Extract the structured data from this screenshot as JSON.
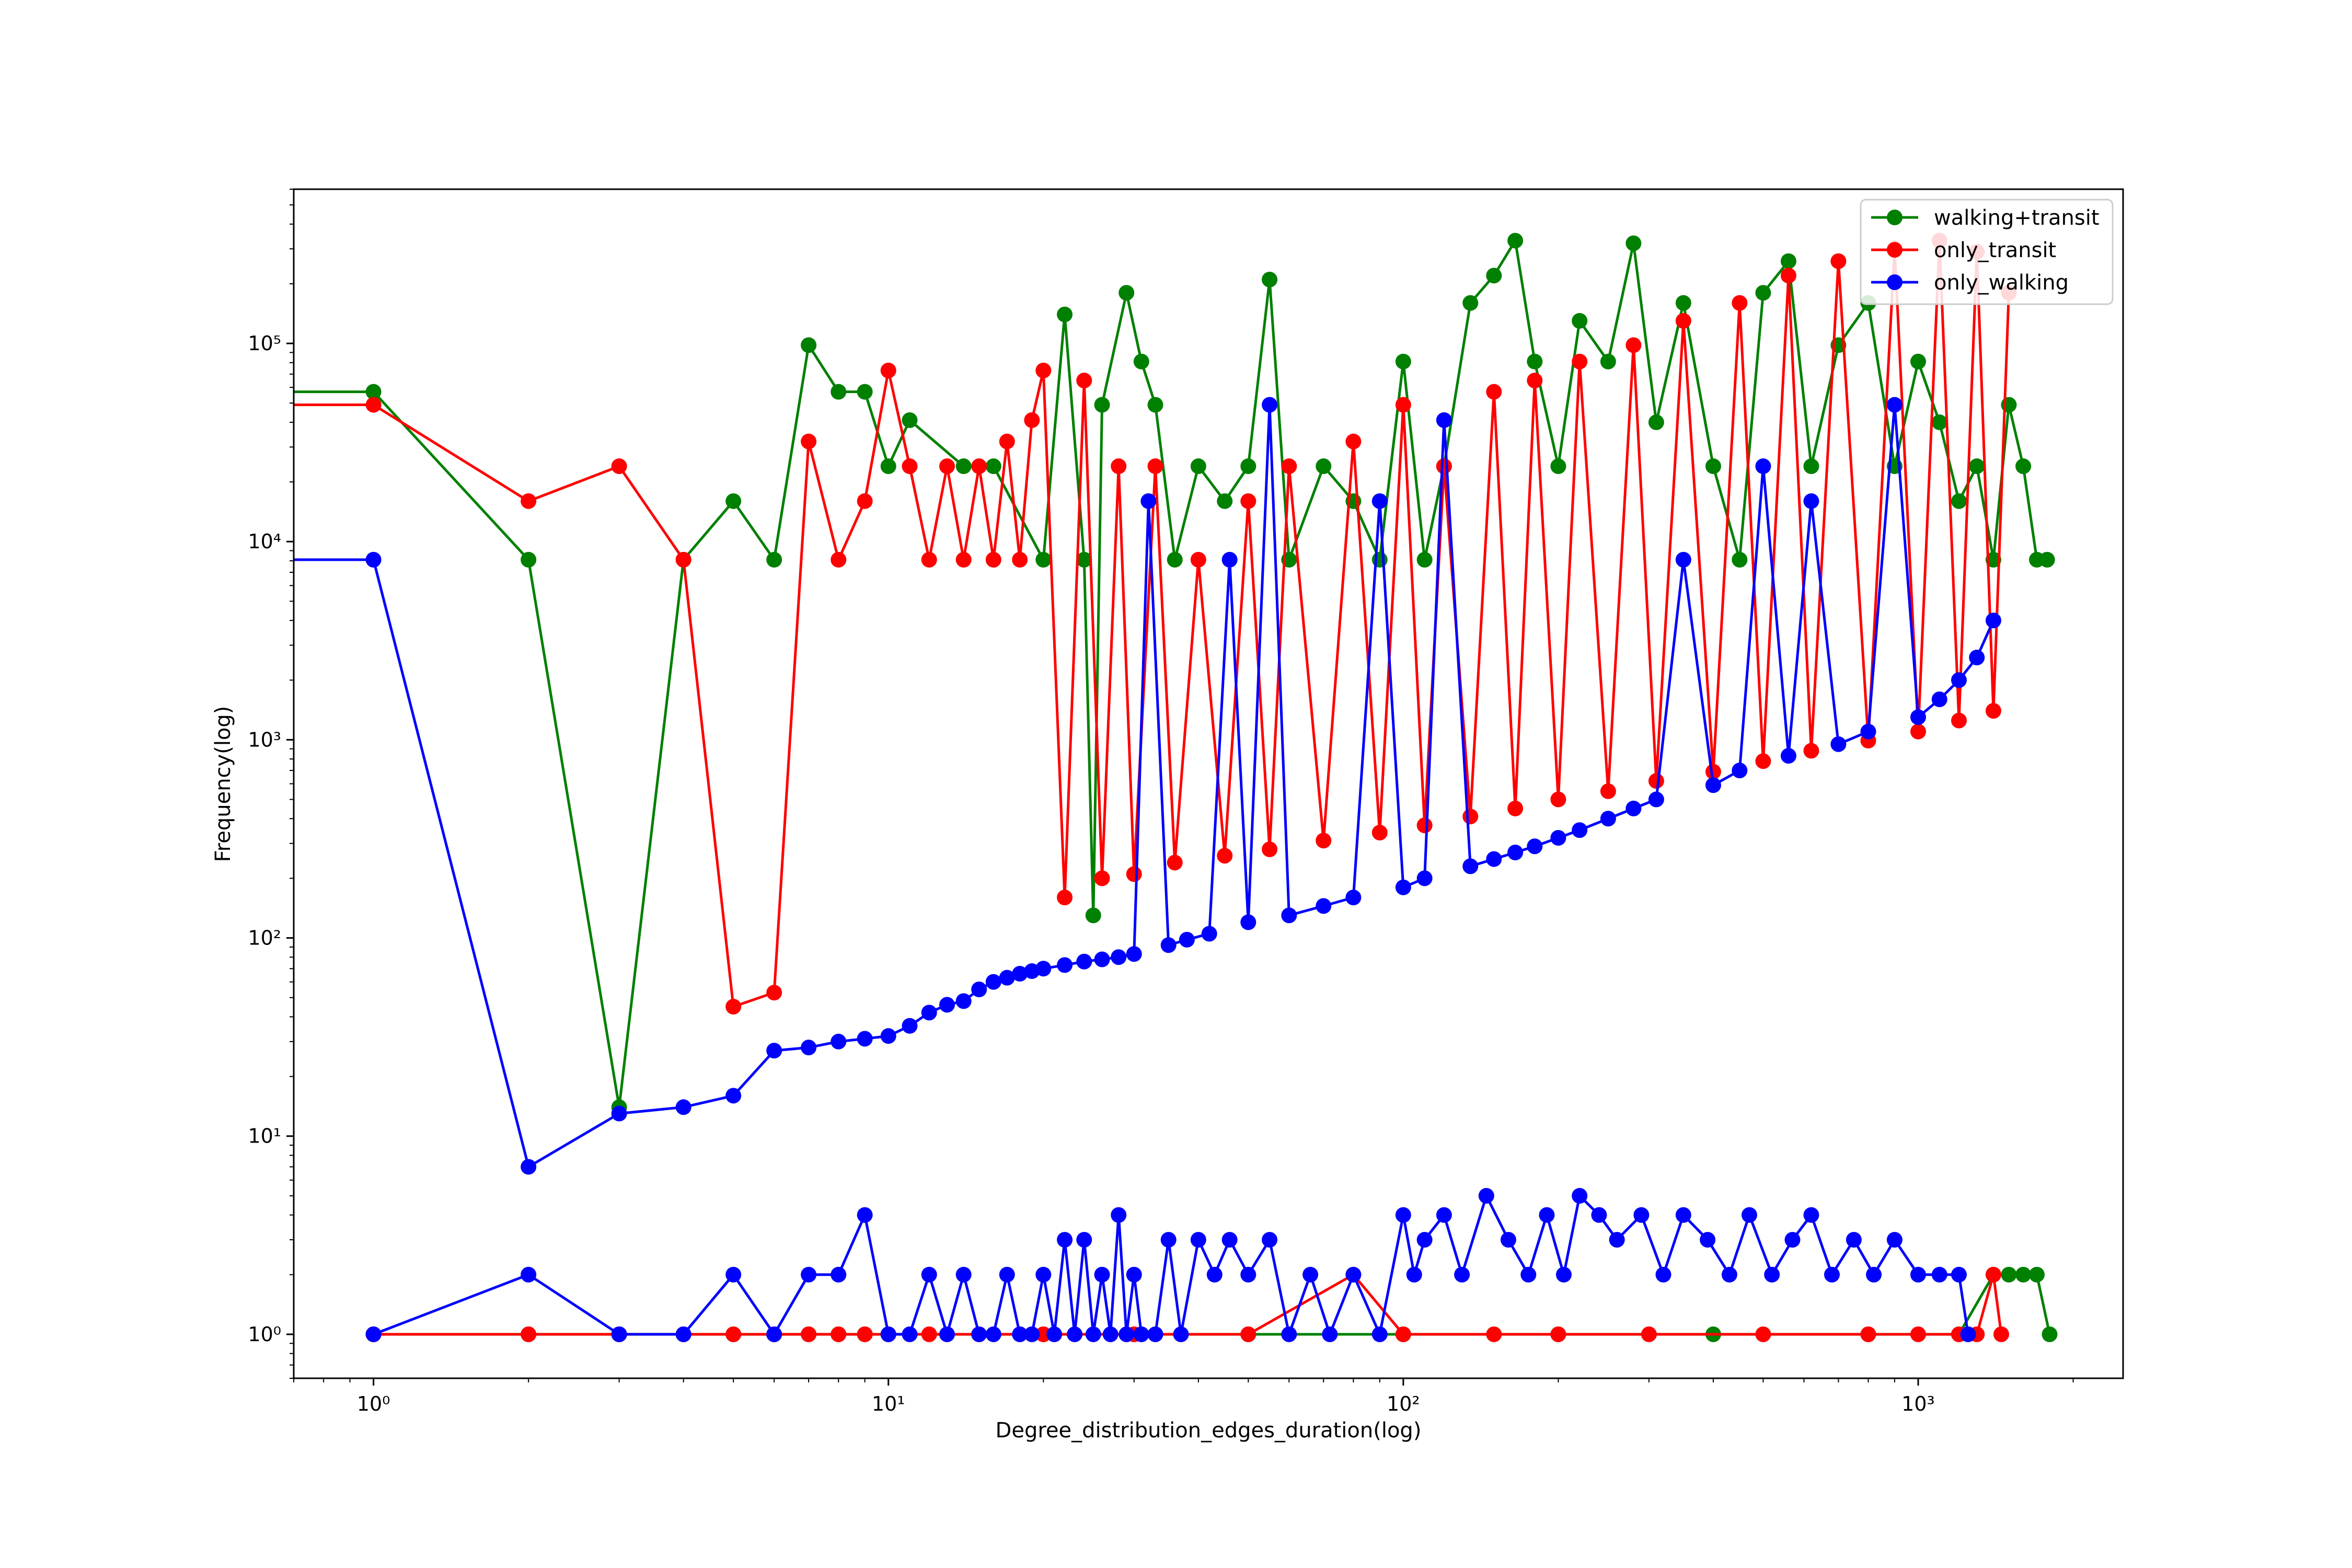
{
  "chart_data": {
    "type": "line",
    "title": "",
    "xlabel": "Degree_distribution_edges_duration(log)",
    "ylabel": "Frequency(log)",
    "xscale": "log",
    "yscale": "log",
    "xlim": [
      0.7,
      2500
    ],
    "ylim": [
      0.6,
      600000
    ],
    "grid": false,
    "legend_position": "top-right",
    "x_ticks": [
      {
        "value": 1,
        "label": "10⁰"
      },
      {
        "value": 10,
        "label": "10¹"
      },
      {
        "value": 100,
        "label": "10²"
      },
      {
        "value": 1000,
        "label": "10³"
      }
    ],
    "y_ticks": [
      {
        "value": 1,
        "label": "10⁰"
      },
      {
        "value": 10,
        "label": "10¹"
      },
      {
        "value": 100,
        "label": "10²"
      },
      {
        "value": 1000,
        "label": "10³"
      },
      {
        "value": 10000,
        "label": "10⁴"
      },
      {
        "value": 100000,
        "label": "10⁵"
      }
    ],
    "series": [
      {
        "name": "walking+transit",
        "color": "#008000",
        "x": [
          0.1,
          1,
          2,
          3,
          4,
          5,
          6,
          7,
          8,
          9,
          10,
          11,
          14,
          16,
          20,
          22,
          24,
          25,
          26,
          29,
          31,
          33,
          36,
          40,
          45,
          50,
          55,
          60,
          70,
          80,
          90,
          100,
          110,
          120,
          135,
          150,
          165,
          180,
          200,
          220,
          250,
          280,
          310,
          350,
          400,
          450,
          500,
          560,
          620,
          700,
          800,
          900,
          1000,
          1100,
          1200,
          1300,
          1400,
          1500,
          1600,
          1700,
          1780
        ],
        "values": [
          57000,
          57000,
          8100,
          14,
          8100,
          16000,
          8100,
          98000,
          57000,
          57000,
          24000,
          41000,
          24000,
          24000,
          8100,
          140000,
          8100,
          130,
          49000,
          180000,
          81000,
          49000,
          8100,
          24000,
          16000,
          24000,
          210000,
          8100,
          24000,
          16000,
          8100,
          81000,
          8100,
          24000,
          160000,
          220000,
          330000,
          81000,
          24000,
          130000,
          81000,
          320000,
          40000,
          160000,
          24000,
          8100,
          180000,
          260000,
          24000,
          98000,
          160000,
          24000,
          81000,
          40000,
          16000,
          24000,
          8100,
          49000,
          24000,
          8100,
          8100
        ]
      },
      {
        "name": "only_transit",
        "color": "#ff0000",
        "x": [
          0.1,
          1,
          2,
          3,
          4,
          5,
          6,
          7,
          8,
          9,
          10,
          11,
          12,
          13,
          14,
          15,
          16,
          17,
          18,
          19,
          20,
          22,
          24,
          26,
          28,
          30,
          33,
          36,
          40,
          45,
          50,
          55,
          60,
          70,
          80,
          90,
          100,
          110,
          120,
          135,
          150,
          165,
          180,
          200,
          220,
          250,
          280,
          310,
          350,
          400,
          450,
          500,
          560,
          620,
          700,
          800,
          900,
          1000,
          1100,
          1200,
          1300,
          1400,
          1500
        ],
        "values": [
          49000,
          49000,
          16000,
          24000,
          8100,
          45,
          53,
          32000,
          8100,
          16000,
          73000,
          24000,
          8100,
          24000,
          8100,
          24000,
          8100,
          32000,
          8100,
          41000,
          73000,
          160,
          65000,
          200,
          24000,
          210,
          24000,
          240,
          8100,
          260,
          16000,
          280,
          24000,
          310,
          32000,
          340,
          49000,
          370,
          24000,
          410,
          57000,
          450,
          65000,
          500,
          81000,
          550,
          98000,
          620,
          130000,
          690,
          160000,
          780,
          220000,
          880,
          260000,
          990,
          300000,
          1100,
          330000,
          1250,
          290000,
          1400,
          180000
        ]
      },
      {
        "name": "only_walking",
        "color": "#0000ff",
        "x": [
          0.1,
          1,
          2,
          3,
          4,
          5,
          6,
          7,
          8,
          9,
          10,
          11,
          12,
          13,
          14,
          15,
          16,
          17,
          18,
          19,
          20,
          22,
          24,
          26,
          28,
          30,
          32,
          35,
          38,
          42,
          46,
          50,
          55,
          60,
          70,
          80,
          90,
          100,
          110,
          120,
          135,
          150,
          165,
          180,
          200,
          220,
          250,
          280,
          310,
          350,
          400,
          450,
          500,
          560,
          620,
          700,
          800,
          900,
          1000,
          1100,
          1200,
          1300,
          1400
        ],
        "values": [
          8100,
          8100,
          7,
          13,
          14,
          16,
          27,
          28,
          30,
          31,
          32,
          36,
          42,
          46,
          48,
          55,
          60,
          63,
          66,
          68,
          70,
          73,
          76,
          78,
          80,
          83,
          16000,
          92,
          98,
          105,
          8100,
          120,
          49000,
          130,
          145,
          160,
          16000,
          180,
          200,
          41000,
          230,
          250,
          270,
          290,
          320,
          350,
          400,
          450,
          500,
          8100,
          590,
          700,
          24000,
          830,
          16000,
          950,
          1100,
          49000,
          1300,
          1600,
          2000,
          2600,
          4000
        ]
      },
      {
        "name": "walking+transit",
        "color": "#008000",
        "x": [
          1,
          2,
          3,
          4,
          5,
          6,
          7,
          8,
          9,
          10,
          20,
          50,
          100,
          200,
          400,
          800,
          1200,
          1400,
          1500,
          1600,
          1700,
          1800
        ],
        "values": [
          1,
          1,
          1,
          1,
          1,
          1,
          1,
          1,
          1,
          1,
          1,
          1,
          1,
          1,
          1,
          1,
          1,
          2,
          2,
          2,
          2,
          1
        ]
      },
      {
        "name": "only_transit",
        "color": "#ff0000",
        "x": [
          1,
          2,
          3,
          4,
          5,
          6,
          7,
          8,
          9,
          10,
          12,
          15,
          20,
          30,
          50,
          80,
          100,
          150,
          200,
          300,
          500,
          800,
          1000,
          1200,
          1300,
          1400,
          1450
        ],
        "values": [
          1,
          1,
          1,
          1,
          1,
          1,
          1,
          1,
          1,
          1,
          1,
          1,
          1,
          1,
          1,
          2,
          1,
          1,
          1,
          1,
          1,
          1,
          1,
          1,
          1,
          2,
          1
        ]
      },
      {
        "name": "only_walking",
        "color": "#0000ff",
        "x": [
          1,
          2,
          3,
          4,
          5,
          6,
          7,
          8,
          9,
          10,
          11,
          12,
          13,
          14,
          15,
          16,
          17,
          18,
          19,
          20,
          21,
          22,
          23,
          24,
          25,
          26,
          27,
          28,
          29,
          30,
          31,
          33,
          35,
          37,
          40,
          43,
          46,
          50,
          55,
          60,
          66,
          72,
          80,
          90,
          100,
          105,
          110,
          120,
          130,
          145,
          160,
          175,
          190,
          205,
          220,
          240,
          260,
          290,
          320,
          350,
          390,
          430,
          470,
          520,
          570,
          620,
          680,
          750,
          820,
          900,
          1000,
          1100,
          1200,
          1250
        ],
        "values": [
          1,
          2,
          1,
          1,
          2,
          1,
          2,
          2,
          4,
          1,
          1,
          2,
          1,
          2,
          1,
          1,
          2,
          1,
          1,
          2,
          1,
          3,
          1,
          3,
          1,
          2,
          1,
          4,
          1,
          2,
          1,
          1,
          3,
          1,
          3,
          2,
          3,
          2,
          3,
          1,
          2,
          1,
          2,
          1,
          4,
          2,
          3,
          4,
          2,
          5,
          3,
          2,
          4,
          2,
          5,
          4,
          3,
          4,
          2,
          4,
          3,
          2,
          4,
          2,
          3,
          4,
          2,
          3,
          2,
          3,
          2,
          2,
          2,
          1
        ]
      }
    ]
  }
}
